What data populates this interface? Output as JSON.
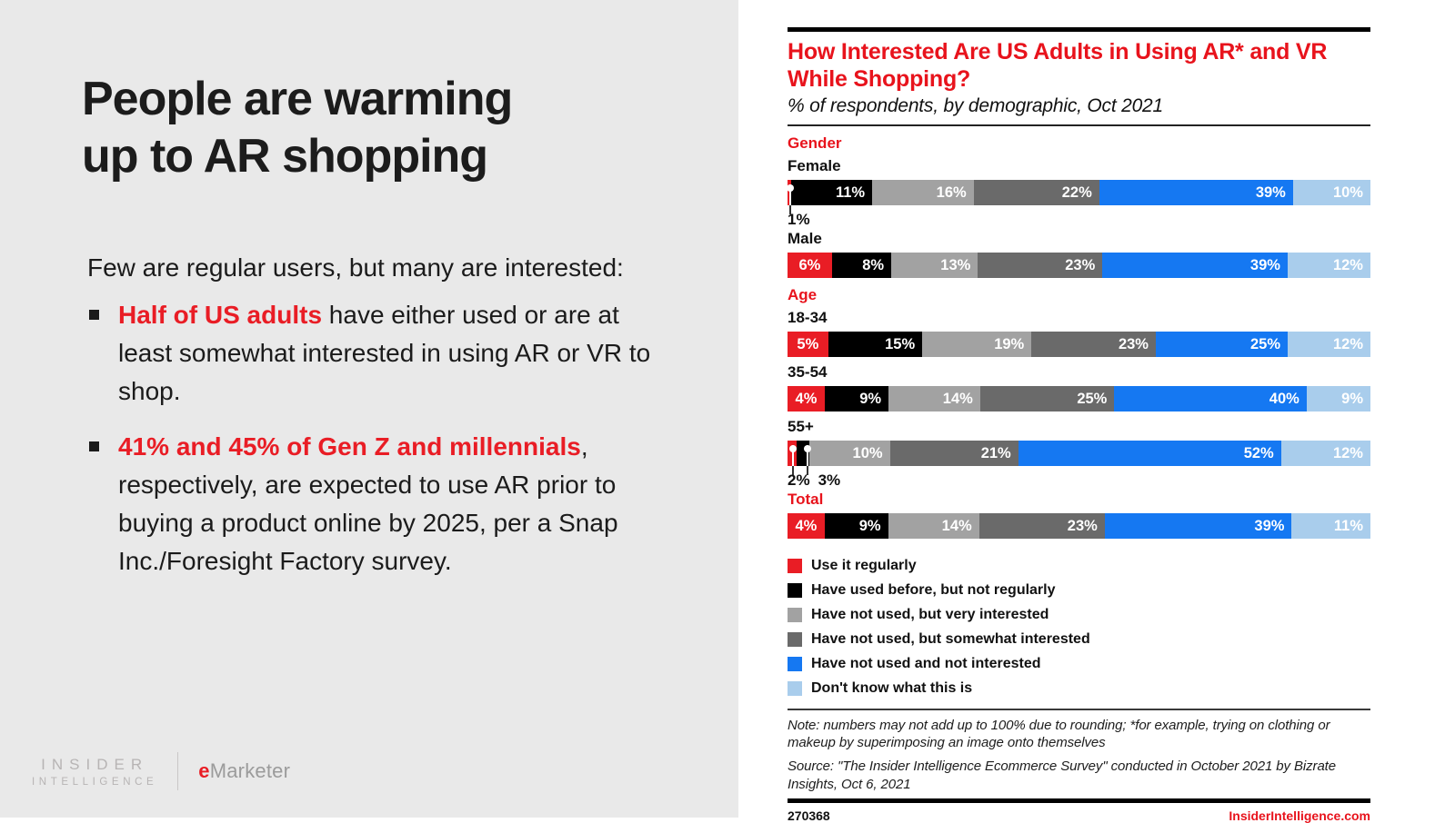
{
  "left": {
    "title": "People are warming\nup to AR shopping",
    "intro": "Few are regular users, but many are interested:",
    "bullets": [
      {
        "highlight": "Half of US adults",
        "rest": " have either used or are at least somewhat interested in using AR or VR to shop."
      },
      {
        "highlight": "41% and 45% of Gen Z and millennials",
        "rest": ", respectively, are expected to use AR prior to buying a product online by 2025, per a Snap Inc./Foresight Factory survey."
      }
    ],
    "logo": {
      "insider_line1": "INSIDER",
      "insider_line2": "INTELLIGENCE",
      "emarketer_e": "e",
      "emarketer_rest": "Marketer"
    }
  },
  "chart_data": {
    "type": "bar",
    "stacked": true,
    "orientation": "horizontal",
    "title": "How Interested Are US Adults in Using AR* and VR While Shopping?",
    "subtitle": "% of respondents, by demographic, Oct 2021",
    "unit": "%",
    "xlim": [
      0,
      100
    ],
    "legend_position": "bottom",
    "series_names": [
      "Use it regularly",
      "Have used before, but not regularly",
      "Have not used, but very interested",
      "Have not used, but somewhat interested",
      "Have not used and not interested",
      "Don't know what this is"
    ],
    "colors": [
      "#e91d25",
      "#000000",
      "#a2a2a2",
      "#6a6a6a",
      "#1578f2",
      "#a9cdec"
    ],
    "groups": [
      {
        "section": "Gender",
        "label": "Female",
        "values": [
          1,
          11,
          16,
          22,
          39,
          10
        ],
        "callout_segments": [
          0
        ]
      },
      {
        "section": "",
        "label": "Male",
        "values": [
          6,
          8,
          13,
          23,
          39,
          12
        ],
        "callout_segments": []
      },
      {
        "section": "Age",
        "label": "18-34",
        "values": [
          5,
          15,
          19,
          23,
          25,
          12
        ],
        "callout_segments": []
      },
      {
        "section": "",
        "label": "35-54",
        "values": [
          4,
          9,
          14,
          25,
          40,
          9
        ],
        "callout_segments": []
      },
      {
        "section": "",
        "label": "55+",
        "values": [
          2,
          3,
          10,
          21,
          52,
          12
        ],
        "callout_segments": [
          0,
          1
        ]
      },
      {
        "section": "Total",
        "label": "",
        "values": [
          4,
          9,
          14,
          23,
          39,
          11
        ],
        "callout_segments": []
      }
    ],
    "note": "Note: numbers may not add up to 100% due to rounding; *for example, trying on clothing or makeup by superimposing an image onto themselves",
    "source": "Source: \"The Insider Intelligence Ecommerce Survey\" conducted in October 2021 by Bizrate Insights, Oct 6, 2021"
  },
  "footer": {
    "chart_id": "270368",
    "site": "InsiderIntelligence.com"
  }
}
